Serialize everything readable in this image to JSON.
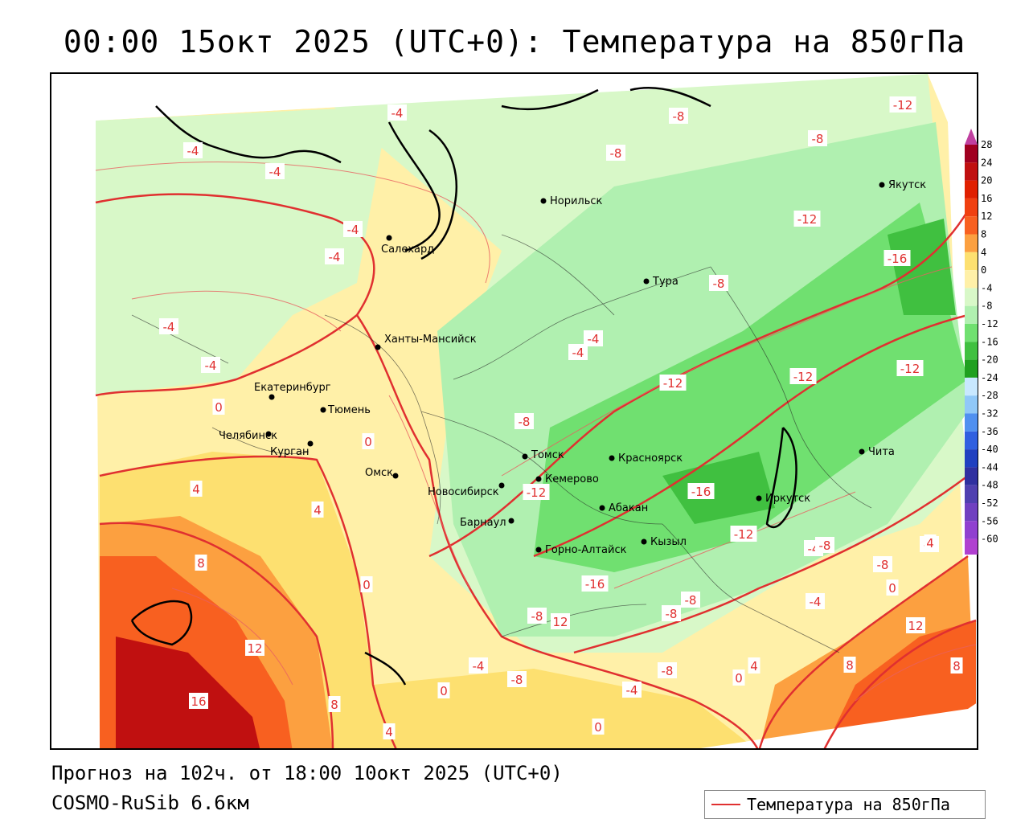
{
  "title": "00:00 15окт 2025 (UTC+0): Температура на 850гПа",
  "forecast_line": "Прогноз на 102ч. от 18:00 10окт 2025 (UTC+0)",
  "model_line": "COSMO-RuSib 6.6км",
  "legend": {
    "label": "Температура на 850гПа",
    "line_color": "#e03030"
  },
  "colorbar": {
    "ticks": [
      "28",
      "24",
      "20",
      "16",
      "12",
      "8",
      "4",
      "0",
      "-4",
      "-8",
      "-12",
      "-16",
      "-20",
      "-24",
      "-28",
      "-32",
      "-36",
      "-40",
      "-44",
      "-48",
      "-52",
      "-56",
      "-60"
    ],
    "colors": [
      "#a00020",
      "#c01010",
      "#e02000",
      "#f04010",
      "#f86020",
      "#fca040",
      "#fde070",
      "#fff0a8",
      "#d8f8c8",
      "#b0f0b0",
      "#70e070",
      "#40c040",
      "#20a020",
      "#c8e8ff",
      "#90c8f8",
      "#5090f0",
      "#3060e0",
      "#2040c0",
      "#3030a0",
      "#5040b0",
      "#7040c0",
      "#9040d0",
      "#b040d0"
    ]
  },
  "cities": [
    {
      "name": "Якутск"
    },
    {
      "name": "Норильск"
    },
    {
      "name": "Салехард"
    },
    {
      "name": "Тура"
    },
    {
      "name": "Ханты-Мансийск"
    },
    {
      "name": "Екатеринбург"
    },
    {
      "name": "Тюмень"
    },
    {
      "name": "Челябинск"
    },
    {
      "name": "Курган"
    },
    {
      "name": "Омск"
    },
    {
      "name": "Новосибирск"
    },
    {
      "name": "Томск"
    },
    {
      "name": "Красноярск"
    },
    {
      "name": "Кемерово"
    },
    {
      "name": "Барнаул"
    },
    {
      "name": "Абакан"
    },
    {
      "name": "Иркутск"
    },
    {
      "name": "Чита"
    },
    {
      "name": "Кызыл"
    },
    {
      "name": "Горно-Алтайск"
    }
  ],
  "isolines": [
    {
      "label": "-4"
    },
    {
      "label": "-8"
    },
    {
      "label": "-12"
    },
    {
      "label": "-16"
    },
    {
      "label": "0"
    },
    {
      "label": "4"
    },
    {
      "label": "8"
    },
    {
      "label": "12"
    },
    {
      "label": "16"
    }
  ]
}
